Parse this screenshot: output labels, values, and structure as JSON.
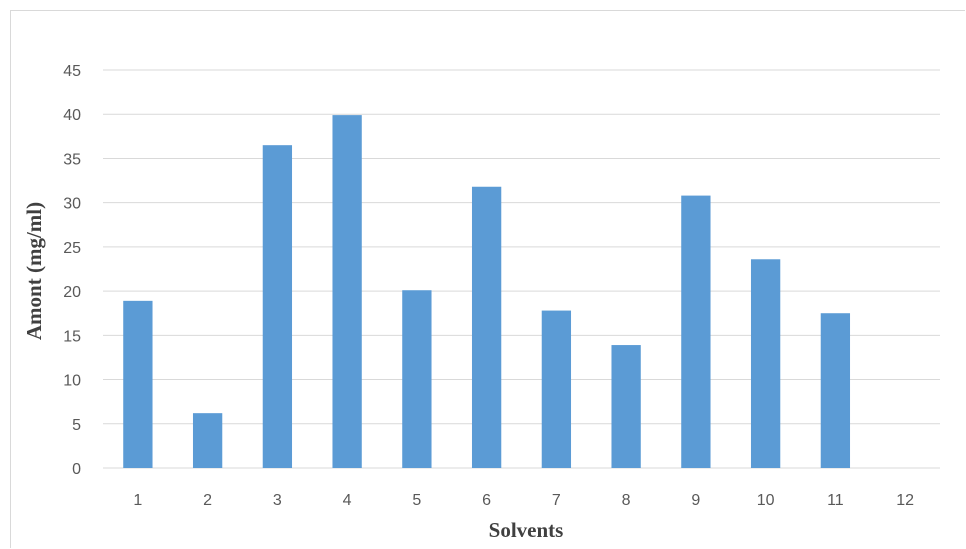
{
  "chart_data": {
    "type": "bar",
    "title": "",
    "xlabel": "Solvents",
    "ylabel": "Amont (mg/ml)",
    "categories": [
      "1",
      "2",
      "3",
      "4",
      "5",
      "6",
      "7",
      "8",
      "9",
      "10",
      "11",
      "12"
    ],
    "series": [
      {
        "values": [
          18.9,
          6.2,
          36.5,
          39.9,
          20.1,
          31.8,
          17.8,
          13.9,
          30.8,
          23.6,
          17.5,
          0
        ]
      }
    ],
    "ylim": [
      0,
      45
    ],
    "yticks": [
      0,
      5,
      10,
      15,
      20,
      25,
      30,
      35,
      40,
      45
    ],
    "grid": true,
    "legend": "none",
    "bar_color": "#5b9bd5",
    "grid_color": "#d9d9d9"
  }
}
